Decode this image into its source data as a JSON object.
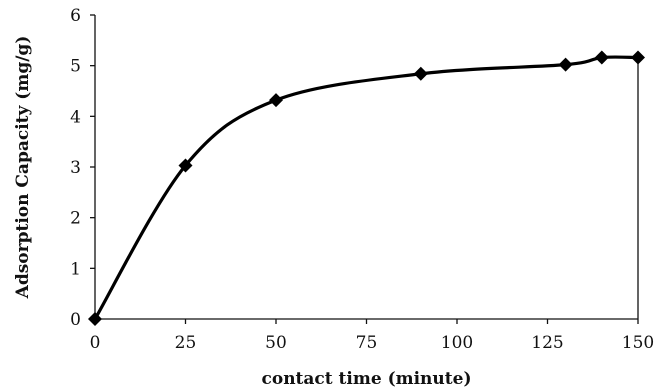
{
  "chart_data": {
    "type": "line",
    "title": "",
    "xlabel": "contact time (minute)",
    "ylabel": "Adsorption Capacity (mg/g)",
    "xlim": [
      0,
      150
    ],
    "ylim": [
      0,
      6
    ],
    "xticks": [
      0,
      25,
      50,
      75,
      100,
      125,
      150
    ],
    "yticks": [
      0,
      1,
      2,
      3,
      4,
      5,
      6
    ],
    "grid": false,
    "legend": "none",
    "smooth": true,
    "marker": "diamond",
    "series": [
      {
        "x": [
          0,
          25,
          50,
          90,
          130,
          140,
          150
        ],
        "y": [
          0,
          3.03,
          4.32,
          4.84,
          5.02,
          5.16,
          5.16
        ],
        "color": "#000000"
      }
    ]
  }
}
